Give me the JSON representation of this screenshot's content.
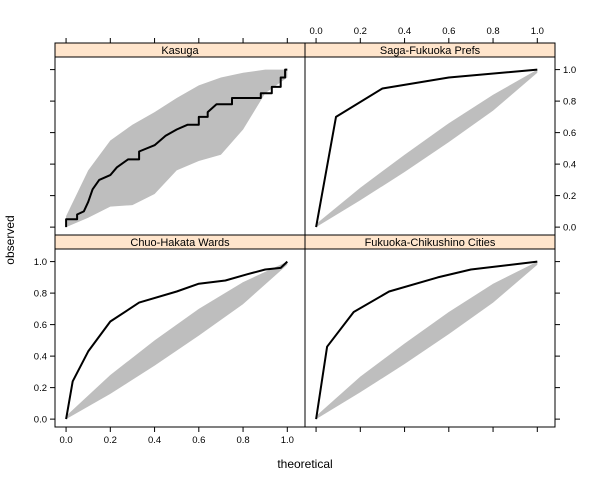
{
  "colors": {
    "strip_fill": "#ffe5cc",
    "band_fill": "#bebebe",
    "line": "#000000",
    "frame": "#000000"
  },
  "axes": {
    "xlabel": "theoretical",
    "ylabel": "observed",
    "xlim": [
      -0.05,
      1.08
    ],
    "ylim": [
      -0.05,
      1.08
    ],
    "ticks": [
      0.0,
      0.2,
      0.4,
      0.6,
      0.8,
      1.0
    ],
    "tick_labels": [
      "0.0",
      "0.2",
      "0.4",
      "0.6",
      "0.8",
      "1.0"
    ]
  },
  "chart_data": {
    "type": "line",
    "layout": "2x2 lattice panels with shared axes",
    "xlabel": "theoretical",
    "ylabel": "observed",
    "xlim": [
      -0.05,
      1.08
    ],
    "ylim": [
      -0.05,
      1.08
    ],
    "panels": [
      {
        "name": "Kasuga",
        "band_upper": [
          [
            0.0,
            0.07
          ],
          [
            0.1,
            0.36
          ],
          [
            0.2,
            0.55
          ],
          [
            0.3,
            0.65
          ],
          [
            0.4,
            0.73
          ],
          [
            0.5,
            0.82
          ],
          [
            0.6,
            0.9
          ],
          [
            0.7,
            0.95
          ],
          [
            0.8,
            0.98
          ],
          [
            0.9,
            1.0
          ],
          [
            1.0,
            1.0
          ]
        ],
        "band_lower": [
          [
            1.0,
            0.95
          ],
          [
            0.9,
            0.85
          ],
          [
            0.8,
            0.62
          ],
          [
            0.7,
            0.46
          ],
          [
            0.6,
            0.42
          ],
          [
            0.5,
            0.36
          ],
          [
            0.4,
            0.21
          ],
          [
            0.3,
            0.14
          ],
          [
            0.2,
            0.13
          ],
          [
            0.1,
            0.06
          ],
          [
            0.0,
            0.0
          ]
        ],
        "line": [
          [
            0.0,
            0.0
          ],
          [
            0.0,
            0.05
          ],
          [
            0.05,
            0.05
          ],
          [
            0.05,
            0.08
          ],
          [
            0.08,
            0.1
          ],
          [
            0.1,
            0.16
          ],
          [
            0.12,
            0.24
          ],
          [
            0.15,
            0.3
          ],
          [
            0.2,
            0.33
          ],
          [
            0.23,
            0.38
          ],
          [
            0.28,
            0.43
          ],
          [
            0.33,
            0.43
          ],
          [
            0.33,
            0.48
          ],
          [
            0.4,
            0.52
          ],
          [
            0.45,
            0.58
          ],
          [
            0.5,
            0.62
          ],
          [
            0.55,
            0.65
          ],
          [
            0.6,
            0.65
          ],
          [
            0.6,
            0.7
          ],
          [
            0.64,
            0.7
          ],
          [
            0.64,
            0.73
          ],
          [
            0.68,
            0.78
          ],
          [
            0.75,
            0.78
          ],
          [
            0.75,
            0.82
          ],
          [
            0.8,
            0.82
          ],
          [
            0.88,
            0.82
          ],
          [
            0.88,
            0.85
          ],
          [
            0.93,
            0.85
          ],
          [
            0.93,
            0.89
          ],
          [
            0.97,
            0.89
          ],
          [
            0.97,
            0.95
          ],
          [
            0.99,
            0.95
          ],
          [
            0.99,
            1.0
          ],
          [
            1.0,
            1.0
          ]
        ]
      },
      {
        "name": "Saga-Fukuoka Prefs",
        "band_upper": [
          [
            0.0,
            0.02
          ],
          [
            0.2,
            0.25
          ],
          [
            0.4,
            0.46
          ],
          [
            0.6,
            0.66
          ],
          [
            0.8,
            0.84
          ],
          [
            1.0,
            1.0
          ]
        ],
        "band_lower": [
          [
            1.0,
            0.98
          ],
          [
            0.8,
            0.74
          ],
          [
            0.6,
            0.54
          ],
          [
            0.4,
            0.35
          ],
          [
            0.2,
            0.17
          ],
          [
            0.0,
            0.0
          ]
        ],
        "line": [
          [
            0.0,
            0.0
          ],
          [
            0.09,
            0.7
          ],
          [
            0.3,
            0.88
          ],
          [
            0.6,
            0.95
          ],
          [
            1.0,
            1.0
          ]
        ]
      },
      {
        "name": "Chuo-Hakata Wards",
        "band_upper": [
          [
            0.0,
            0.02
          ],
          [
            0.2,
            0.28
          ],
          [
            0.4,
            0.5
          ],
          [
            0.6,
            0.7
          ],
          [
            0.8,
            0.87
          ],
          [
            1.0,
            1.0
          ]
        ],
        "band_lower": [
          [
            1.0,
            0.98
          ],
          [
            0.8,
            0.73
          ],
          [
            0.6,
            0.53
          ],
          [
            0.4,
            0.34
          ],
          [
            0.2,
            0.16
          ],
          [
            0.0,
            0.0
          ]
        ],
        "line": [
          [
            0.0,
            0.0
          ],
          [
            0.03,
            0.24
          ],
          [
            0.1,
            0.43
          ],
          [
            0.2,
            0.62
          ],
          [
            0.33,
            0.74
          ],
          [
            0.5,
            0.81
          ],
          [
            0.6,
            0.86
          ],
          [
            0.72,
            0.88
          ],
          [
            0.82,
            0.92
          ],
          [
            0.9,
            0.95
          ],
          [
            0.97,
            0.96
          ],
          [
            1.0,
            1.0
          ]
        ]
      },
      {
        "name": "Fukuoka-Chikushino Cities",
        "band_upper": [
          [
            0.0,
            0.02
          ],
          [
            0.2,
            0.27
          ],
          [
            0.4,
            0.48
          ],
          [
            0.6,
            0.68
          ],
          [
            0.8,
            0.86
          ],
          [
            1.0,
            1.0
          ]
        ],
        "band_lower": [
          [
            1.0,
            0.98
          ],
          [
            0.8,
            0.74
          ],
          [
            0.6,
            0.54
          ],
          [
            0.4,
            0.35
          ],
          [
            0.2,
            0.17
          ],
          [
            0.0,
            0.0
          ]
        ],
        "line": [
          [
            0.0,
            0.0
          ],
          [
            0.05,
            0.46
          ],
          [
            0.17,
            0.68
          ],
          [
            0.33,
            0.81
          ],
          [
            0.55,
            0.9
          ],
          [
            0.7,
            0.95
          ],
          [
            1.0,
            1.0
          ]
        ]
      }
    ]
  }
}
